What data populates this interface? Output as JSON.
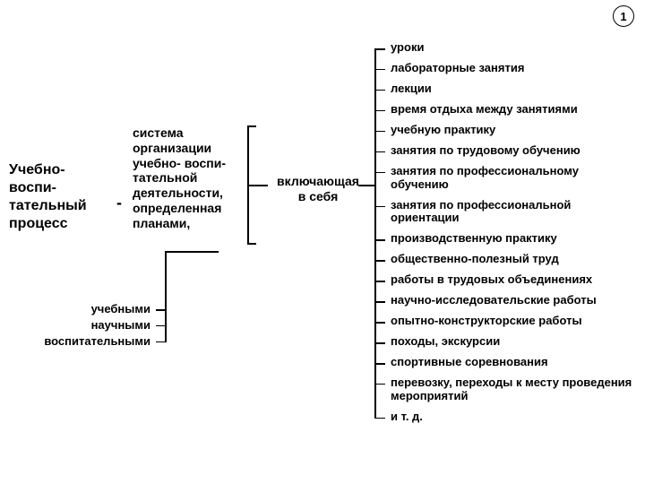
{
  "page_number": "1",
  "main_label": "Учебно-\nвоспи-\nтательный\nпроцесс",
  "dash": "-",
  "mid_label": "система\nорганизации\nучебно- воспи-\nтательной\nдеятельности,\nопределенная\nпланами,",
  "include_label": "включающая\nв себя",
  "right_items": [
    "уроки",
    "лабораторные занятия",
    "лекции",
    "время отдыха между занятиями",
    "учебную практику",
    "занятия по трудовому обучению",
    "занятия по профессиональному обучению",
    "занятия по профессиональной ориентации",
    "производственную практику",
    "общественно-полезный труд",
    "работы в трудовых объединениях",
    "научно-исследовательские работы",
    "опытно-конструкторские работы",
    "походы, экскурсии",
    "спортивные соревнования",
    "перевозку, переходы к месту проведения мероприятий",
    "и т. д."
  ],
  "lower_items": [
    "учебными",
    "научными",
    "воспитательными"
  ],
  "colors": {
    "text": "#000000",
    "line": "#000000",
    "bg": "#ffffff"
  },
  "fontsize": {
    "main": 16,
    "mid": 14,
    "item": 13
  }
}
